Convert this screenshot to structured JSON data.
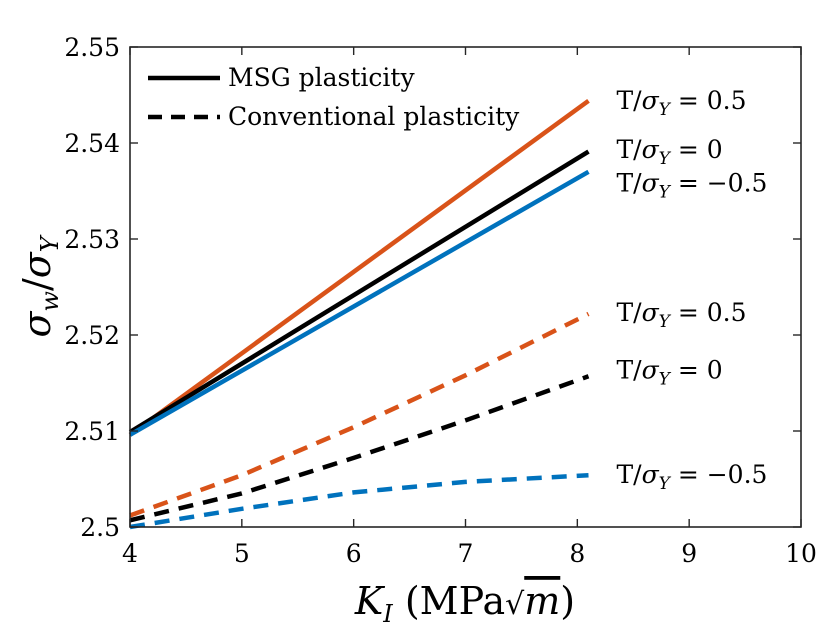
{
  "chart_data": {
    "type": "line",
    "title": "",
    "xlabel": {
      "symbol": "K",
      "sub": "I",
      "unit_open": " (MPa",
      "unit_root": "m",
      "unit_close": ")"
    },
    "ylabel": {
      "symbol": "σ",
      "sub": "w",
      "slash": "/",
      "symbol2": "σ",
      "sub2": "Y"
    },
    "xlim": [
      4,
      10
    ],
    "ylim": [
      2.5,
      2.55
    ],
    "xticks": [
      "4",
      "5",
      "6",
      "7",
      "8",
      "9",
      "10"
    ],
    "yticks": [
      "2.5",
      "2.51",
      "2.52",
      "2.53",
      "2.54",
      "2.55"
    ],
    "grid": false,
    "legend": {
      "position": "top-left",
      "entries": [
        {
          "label": "MSG plasticity",
          "style": "solid"
        },
        {
          "label": "Conventional plasticity",
          "style": "dashed"
        }
      ]
    },
    "series": [
      {
        "name": "MSG T/σY = 0.5",
        "style": "solid",
        "color": "#D95319",
        "x": [
          4,
          8.1
        ],
        "y": [
          2.5096,
          2.5444
        ]
      },
      {
        "name": "MSG T/σY = 0",
        "style": "solid",
        "color": "#000000",
        "x": [
          4,
          8.1
        ],
        "y": [
          2.5099,
          2.5391
        ]
      },
      {
        "name": "MSG T/σY = -0.5",
        "style": "solid",
        "color": "#0072BD",
        "x": [
          4,
          8.1
        ],
        "y": [
          2.5096,
          2.537
        ]
      },
      {
        "name": "Conv T/σY = 0.5",
        "style": "dashed",
        "color": "#D95319",
        "x": [
          4,
          5,
          6,
          7,
          8.1
        ],
        "y": [
          2.5012,
          2.5054,
          2.5104,
          2.5158,
          2.5222
        ]
      },
      {
        "name": "Conv T/σY = 0",
        "style": "dashed",
        "color": "#000000",
        "x": [
          4,
          5,
          6,
          7,
          8.1
        ],
        "y": [
          2.5007,
          2.5035,
          2.5072,
          2.5111,
          2.5157
        ]
      },
      {
        "name": "Conv T/σY = -0.5",
        "style": "dashed",
        "color": "#0072BD",
        "x": [
          4,
          5,
          6,
          7,
          8.1
        ],
        "y": [
          2.5,
          2.5019,
          2.5036,
          2.5047,
          2.5054
        ]
      }
    ],
    "annotations": [
      {
        "text_lhs": "T/",
        "sym": "σ",
        "sub": "Y",
        "rhs": " = 0.5",
        "x": 8.35,
        "y": 2.5445
      },
      {
        "text_lhs": "T/",
        "sym": "σ",
        "sub": "Y",
        "rhs": " = 0",
        "x": 8.35,
        "y": 2.5394
      },
      {
        "text_lhs": "T/",
        "sym": "σ",
        "sub": "Y",
        "rhs": " = −0.5",
        "x": 8.35,
        "y": 2.5359
      },
      {
        "text_lhs": "T/",
        "sym": "σ",
        "sub": "Y",
        "rhs": " = 0.5",
        "x": 8.35,
        "y": 2.5224
      },
      {
        "text_lhs": "T/",
        "sym": "σ",
        "sub": "Y",
        "rhs": " = 0",
        "x": 8.35,
        "y": 2.5164
      },
      {
        "text_lhs": "T/",
        "sym": "σ",
        "sub": "Y",
        "rhs": " = −0.5",
        "x": 8.35,
        "y": 2.5055
      }
    ]
  }
}
